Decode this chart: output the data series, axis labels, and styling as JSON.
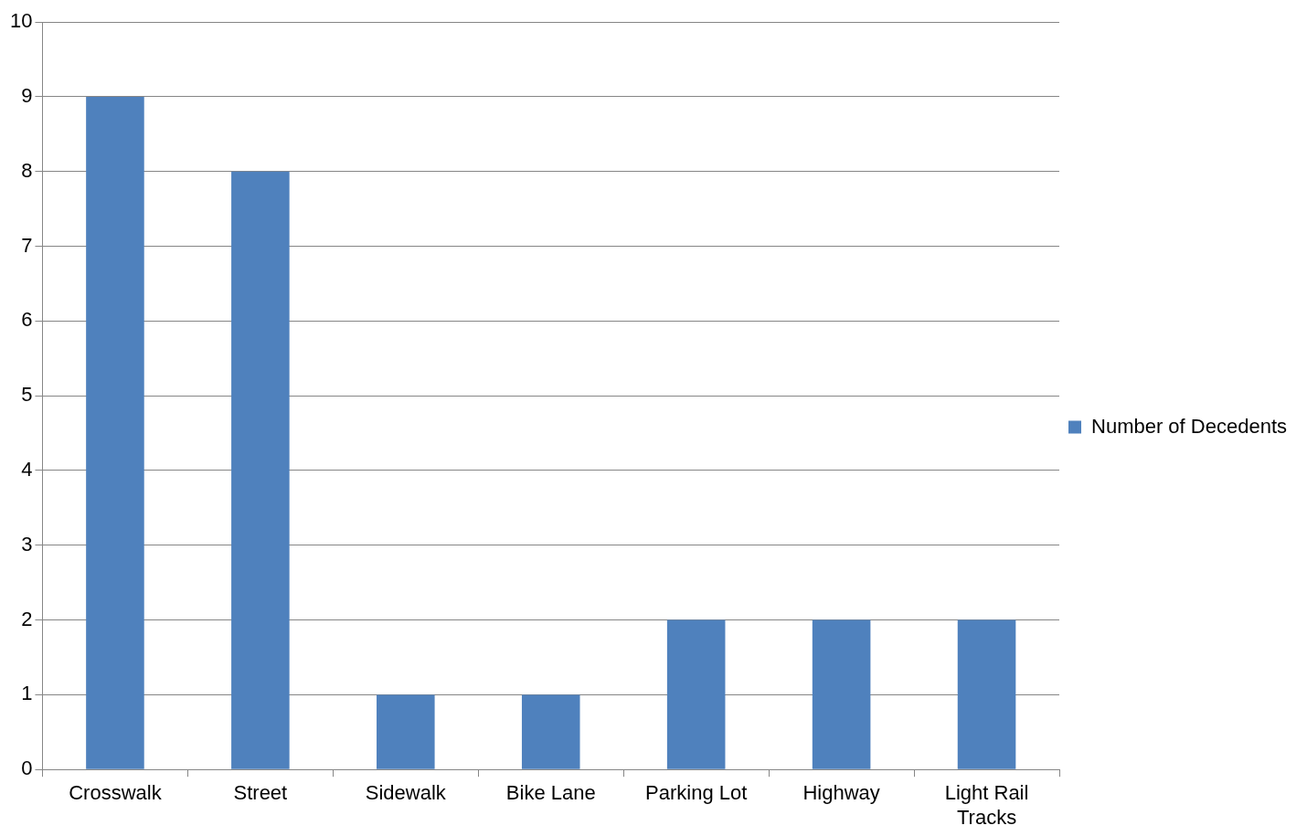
{
  "chart_data": {
    "type": "bar",
    "categories": [
      "Crosswalk",
      "Street",
      "Sidewalk",
      "Bike Lane",
      "Parking Lot",
      "Highway",
      "Light Rail Tracks"
    ],
    "series": [
      {
        "name": "Number of Decedents",
        "color": "#4f81bd",
        "values": [
          9,
          8,
          1,
          1,
          2,
          2,
          2
        ]
      }
    ],
    "ylim": [
      0,
      10
    ],
    "yticks": [
      0,
      1,
      2,
      3,
      4,
      5,
      6,
      7,
      8,
      9,
      10
    ],
    "grid": "y",
    "legend": "right"
  }
}
